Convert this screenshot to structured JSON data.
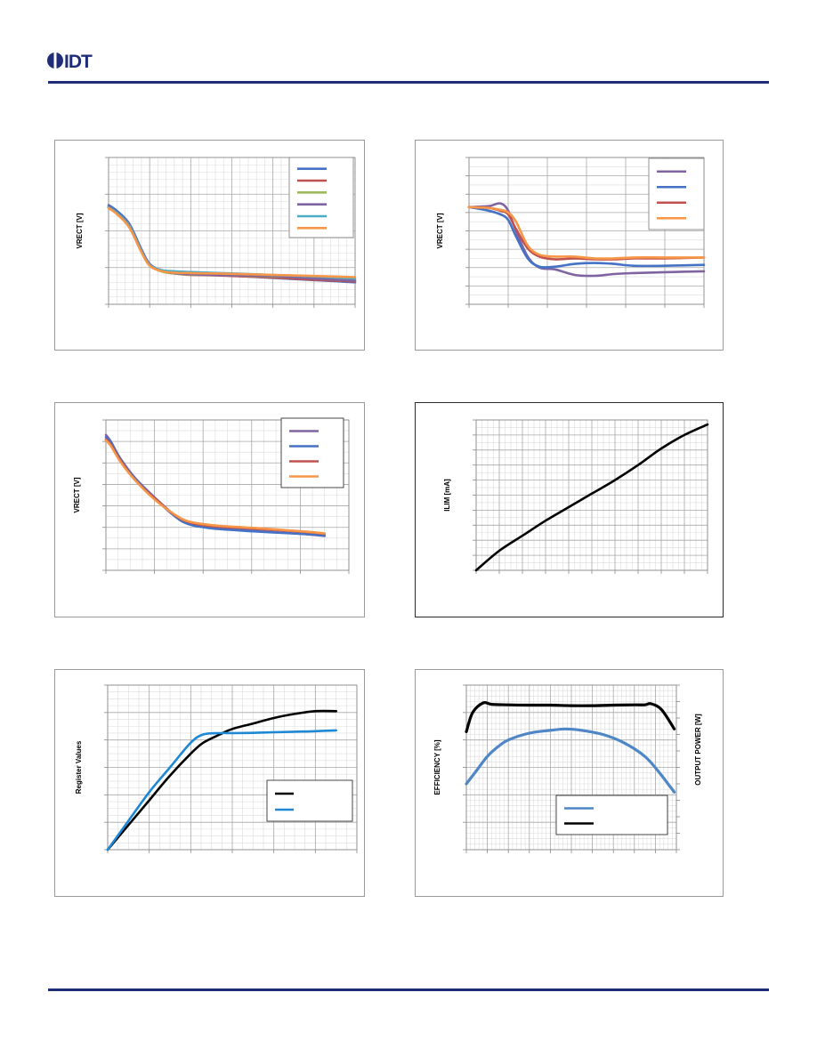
{
  "header": {
    "logo_text": "IDT",
    "brand_color": "#1f2d78"
  },
  "chart_data": [
    {
      "id": "c1",
      "type": "line",
      "title": "",
      "xlabel": "",
      "ylabel": "VRECT [V]",
      "xlim": [
        0,
        6
      ],
      "ylim": [
        0,
        4
      ],
      "grid": true,
      "legend_position": "top-right",
      "series": [
        {
          "color": "#4472c4",
          "x": [
            0,
            0.2,
            0.5,
            0.8,
            1.0,
            1.3,
            1.6,
            2,
            2.5,
            3,
            4,
            5,
            6
          ],
          "y": [
            2.7,
            2.55,
            2.2,
            1.5,
            1.1,
            0.9,
            0.85,
            0.82,
            0.8,
            0.78,
            0.72,
            0.66,
            0.6
          ]
        },
        {
          "color": "#c0504d",
          "x": [
            0,
            0.2,
            0.5,
            0.8,
            1.0,
            1.3,
            1.6,
            2,
            2.5,
            3,
            4,
            5,
            6
          ],
          "y": [
            2.65,
            2.5,
            2.15,
            1.45,
            1.08,
            0.9,
            0.84,
            0.8,
            0.79,
            0.77,
            0.73,
            0.67,
            0.62
          ]
        },
        {
          "color": "#9bbb59",
          "x": [
            0,
            0.2,
            0.5,
            0.8,
            1.0,
            1.3,
            1.6,
            2,
            2.5,
            3,
            4,
            5,
            6
          ],
          "y": [
            2.63,
            2.48,
            2.12,
            1.44,
            1.07,
            0.89,
            0.84,
            0.81,
            0.8,
            0.79,
            0.76,
            0.72,
            0.68
          ]
        },
        {
          "color": "#8064a2",
          "x": [
            0,
            0.2,
            0.5,
            0.8,
            1.0,
            1.3,
            1.6,
            2,
            2.5,
            3,
            4,
            5,
            6
          ],
          "y": [
            2.66,
            2.5,
            2.18,
            1.47,
            1.09,
            0.92,
            0.85,
            0.82,
            0.8,
            0.79,
            0.77,
            0.7,
            0.64
          ]
        },
        {
          "color": "#4bacc6",
          "x": [
            0,
            0.2,
            0.5,
            0.8,
            1.0,
            1.3,
            1.6,
            2,
            2.5,
            3,
            4,
            5,
            6
          ],
          "y": [
            2.64,
            2.49,
            2.14,
            1.45,
            1.07,
            0.93,
            0.9,
            0.88,
            0.86,
            0.84,
            0.8,
            0.76,
            0.7
          ]
        },
        {
          "color": "#f79646",
          "x": [
            0,
            0.2,
            0.5,
            0.8,
            1.0,
            1.3,
            1.6,
            2,
            2.5,
            3,
            4,
            5,
            6
          ],
          "y": [
            2.62,
            2.46,
            2.1,
            1.42,
            1.05,
            0.9,
            0.86,
            0.85,
            0.84,
            0.83,
            0.8,
            0.77,
            0.74
          ]
        }
      ]
    },
    {
      "id": "c2",
      "type": "line",
      "title": "",
      "xlabel": "",
      "ylabel": "VRECT [V]",
      "xlim": [
        0,
        6
      ],
      "ylim": [
        0,
        8
      ],
      "grid": true,
      "legend_position": "top-right",
      "series": [
        {
          "color": "#8064a2",
          "x": [
            0,
            0.5,
            0.8,
            1.0,
            1.2,
            1.5,
            1.8,
            2.2,
            2.7,
            3.2,
            3.7,
            4.2,
            5,
            6
          ],
          "y": [
            5.3,
            5.35,
            5.5,
            5.1,
            4.0,
            2.6,
            2.0,
            1.9,
            1.6,
            1.55,
            1.65,
            1.7,
            1.75,
            1.8
          ]
        },
        {
          "color": "#4472c4",
          "x": [
            0,
            0.5,
            0.8,
            1.0,
            1.2,
            1.5,
            1.8,
            2.2,
            2.7,
            3.2,
            3.7,
            4.2,
            5,
            6
          ],
          "y": [
            5.3,
            5.1,
            4.9,
            4.6,
            3.7,
            2.5,
            2.05,
            2.05,
            2.2,
            2.25,
            2.2,
            2.1,
            2.1,
            2.15
          ]
        },
        {
          "color": "#c0504d",
          "x": [
            0,
            0.5,
            0.8,
            1.0,
            1.2,
            1.5,
            1.8,
            2.2,
            2.7,
            3.2,
            3.7,
            4.2,
            5,
            6
          ],
          "y": [
            5.3,
            5.25,
            5.1,
            4.9,
            4.1,
            3.05,
            2.6,
            2.45,
            2.5,
            2.45,
            2.45,
            2.5,
            2.5,
            2.55
          ]
        },
        {
          "color": "#f79646",
          "x": [
            0,
            0.5,
            0.8,
            1.0,
            1.2,
            1.5,
            1.8,
            2.2,
            2.7,
            3.2,
            3.7,
            4.2,
            5,
            6
          ],
          "y": [
            5.3,
            5.25,
            5.15,
            5.0,
            4.5,
            3.2,
            2.7,
            2.6,
            2.6,
            2.5,
            2.5,
            2.55,
            2.55,
            2.55
          ]
        }
      ]
    },
    {
      "id": "c3",
      "type": "line",
      "title": "",
      "xlabel": "",
      "ylabel": "VRECT [V]",
      "xlim": [
        0,
        5
      ],
      "ylim": [
        0,
        7
      ],
      "grid": true,
      "legend_position": "top-right",
      "series": [
        {
          "color": "#8064a2",
          "x": [
            0,
            0.1,
            0.3,
            0.6,
            1.0,
            1.4,
            1.7,
            2.2,
            3,
            4,
            4.5
          ],
          "y": [
            6.3,
            6.0,
            5.2,
            4.3,
            3.4,
            2.6,
            2.2,
            2.0,
            1.85,
            1.7,
            1.6
          ]
        },
        {
          "color": "#4472c4",
          "x": [
            0,
            0.1,
            0.3,
            0.6,
            1.0,
            1.4,
            1.7,
            2.2,
            3,
            4,
            4.5
          ],
          "y": [
            6.2,
            5.95,
            5.15,
            4.25,
            3.35,
            2.55,
            2.15,
            1.95,
            1.82,
            1.7,
            1.62
          ]
        },
        {
          "color": "#c0504d",
          "x": [
            0,
            0.1,
            0.3,
            0.6,
            1.0,
            1.4,
            1.7,
            2.2,
            3,
            4,
            4.5
          ],
          "y": [
            6.1,
            5.85,
            5.1,
            4.2,
            3.35,
            2.6,
            2.25,
            2.05,
            1.95,
            1.8,
            1.7
          ]
        },
        {
          "color": "#f79646",
          "x": [
            0,
            0.1,
            0.3,
            0.6,
            1.0,
            1.4,
            1.7,
            2.2,
            3,
            4,
            4.5
          ],
          "y": [
            6.05,
            5.8,
            5.05,
            4.2,
            3.3,
            2.62,
            2.28,
            2.1,
            1.98,
            1.82,
            1.72
          ]
        }
      ]
    },
    {
      "id": "c4",
      "type": "line",
      "title": "",
      "xlabel": "",
      "ylabel": "ILIM [mA]",
      "xlim": [
        0,
        10
      ],
      "ylim": [
        0,
        10
      ],
      "grid": true,
      "series": [
        {
          "color": "#000000",
          "x": [
            0,
            1,
            2,
            3,
            4,
            5,
            6,
            7,
            8,
            9,
            10
          ],
          "y": [
            0,
            1.3,
            2.3,
            3.3,
            4.2,
            5.1,
            6.0,
            7.0,
            8.1,
            9.0,
            9.7
          ]
        }
      ]
    },
    {
      "id": "c5",
      "type": "line",
      "title": "",
      "xlabel": "",
      "ylabel": "Register Values",
      "xlim": [
        0,
        6
      ],
      "ylim": [
        0,
        6
      ],
      "grid": true,
      "legend_position": "center-right",
      "series": [
        {
          "color": "#000000",
          "x": [
            0,
            0.5,
            1,
            1.5,
            2,
            2.3,
            2.7,
            3,
            3.5,
            4,
            4.5,
            5,
            5.5
          ],
          "y": [
            0,
            0.9,
            1.8,
            2.7,
            3.5,
            3.9,
            4.2,
            4.4,
            4.6,
            4.8,
            4.95,
            5.05,
            5.05
          ]
        },
        {
          "color": "#1e88d4",
          "x": [
            0,
            0.5,
            1,
            1.5,
            2,
            2.3,
            2.7,
            3,
            3.5,
            4,
            4.5,
            5,
            5.5
          ],
          "y": [
            0,
            1.05,
            2.1,
            3.0,
            3.9,
            4.2,
            4.25,
            4.25,
            4.26,
            4.28,
            4.3,
            4.32,
            4.35
          ]
        }
      ]
    },
    {
      "id": "c6",
      "type": "line",
      "title": "",
      "xlabel": "",
      "ylabel": "EFFICIENCY [%]",
      "y2label": "OUTPUT POWER [W]",
      "xlim": [
        0,
        10
      ],
      "ylim": [
        0,
        6
      ],
      "grid": true,
      "legend_position": "bottom-right",
      "series": [
        {
          "color": "#4f86c6",
          "x": [
            0,
            0.5,
            1,
            1.5,
            2,
            3,
            4,
            4.7,
            5.5,
            6.5,
            7.5,
            8.5,
            9.2,
            9.6,
            9.9
          ],
          "y": [
            2.4,
            2.9,
            3.4,
            3.75,
            4.0,
            4.25,
            4.35,
            4.4,
            4.35,
            4.2,
            3.9,
            3.4,
            2.8,
            2.4,
            2.1
          ]
        },
        {
          "color": "#000000",
          "x": [
            0,
            0.3,
            0.8,
            1.2,
            2,
            3,
            4,
            5,
            6,
            7,
            8,
            8.5,
            8.8,
            9.3,
            9.9
          ],
          "y": [
            4.3,
            5.0,
            5.35,
            5.3,
            5.28,
            5.27,
            5.27,
            5.25,
            5.25,
            5.27,
            5.28,
            5.28,
            5.32,
            5.1,
            4.4
          ]
        }
      ]
    }
  ]
}
